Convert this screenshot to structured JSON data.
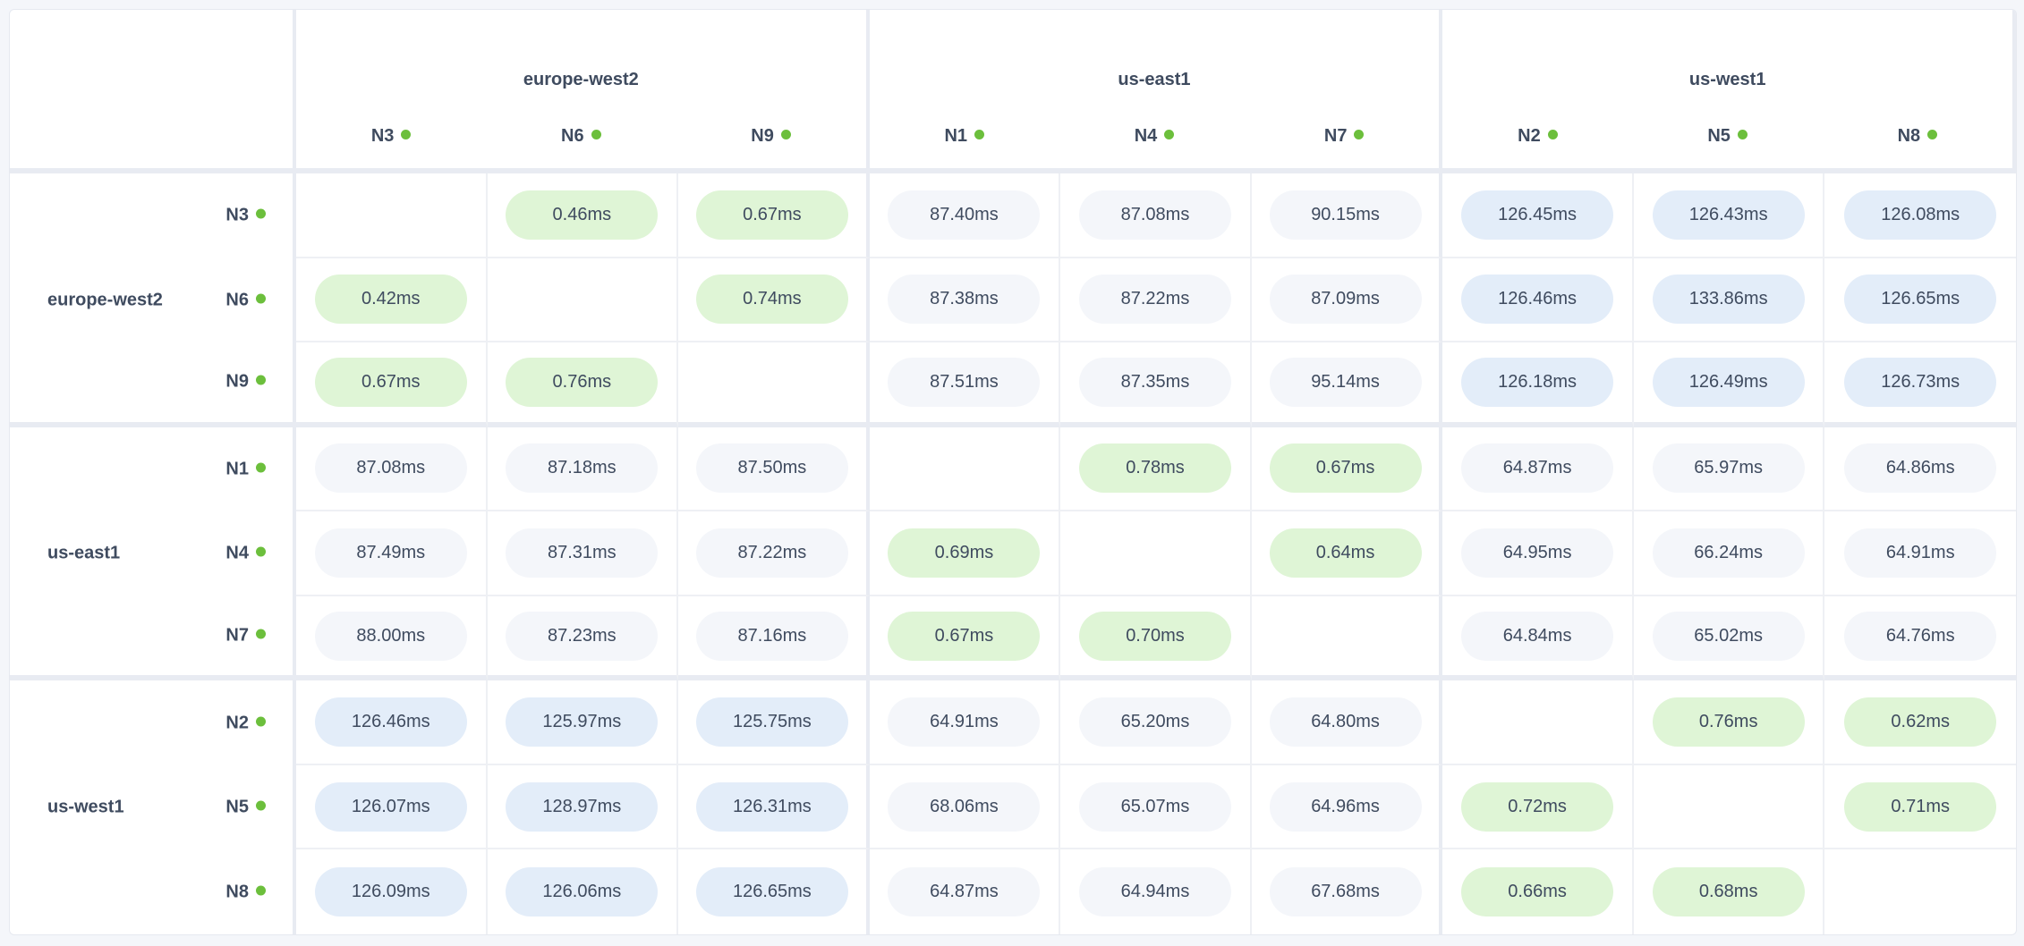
{
  "regions": [
    {
      "name": "europe-west2",
      "nodes": [
        "N3",
        "N6",
        "N9"
      ]
    },
    {
      "name": "us-east1",
      "nodes": [
        "N1",
        "N4",
        "N7"
      ]
    },
    {
      "name": "us-west1",
      "nodes": [
        "N2",
        "N5",
        "N8"
      ]
    }
  ],
  "status_color": "#6cbf3c",
  "tone_colors": {
    "same-region": "#dff5d6",
    "near": "#f4f6fa",
    "far": "#e3edf9"
  },
  "matrix": {
    "rows": [
      {
        "node": "N3",
        "values": [
          null,
          "0.46ms",
          "0.67ms",
          "87.40ms",
          "87.08ms",
          "90.15ms",
          "126.45ms",
          "126.43ms",
          "126.08ms"
        ]
      },
      {
        "node": "N6",
        "values": [
          "0.42ms",
          null,
          "0.74ms",
          "87.38ms",
          "87.22ms",
          "87.09ms",
          "126.46ms",
          "133.86ms",
          "126.65ms"
        ]
      },
      {
        "node": "N9",
        "values": [
          "0.67ms",
          "0.76ms",
          null,
          "87.51ms",
          "87.35ms",
          "95.14ms",
          "126.18ms",
          "126.49ms",
          "126.73ms"
        ]
      },
      {
        "node": "N1",
        "values": [
          "87.08ms",
          "87.18ms",
          "87.50ms",
          null,
          "0.78ms",
          "0.67ms",
          "64.87ms",
          "65.97ms",
          "64.86ms"
        ]
      },
      {
        "node": "N4",
        "values": [
          "87.49ms",
          "87.31ms",
          "87.22ms",
          "0.69ms",
          null,
          "0.64ms",
          "64.95ms",
          "66.24ms",
          "64.91ms"
        ]
      },
      {
        "node": "N7",
        "values": [
          "88.00ms",
          "87.23ms",
          "87.16ms",
          "0.67ms",
          "0.70ms",
          null,
          "64.84ms",
          "65.02ms",
          "64.76ms"
        ]
      },
      {
        "node": "N2",
        "values": [
          "126.46ms",
          "125.97ms",
          "125.75ms",
          "64.91ms",
          "65.20ms",
          "64.80ms",
          null,
          "0.76ms",
          "0.62ms"
        ]
      },
      {
        "node": "N5",
        "values": [
          "126.07ms",
          "128.97ms",
          "126.31ms",
          "68.06ms",
          "65.07ms",
          "64.96ms",
          "0.72ms",
          null,
          "0.71ms"
        ]
      },
      {
        "node": "N8",
        "values": [
          "126.09ms",
          "126.06ms",
          "126.65ms",
          "64.87ms",
          "64.94ms",
          "67.68ms",
          "0.66ms",
          "0.68ms",
          null
        ]
      }
    ]
  }
}
